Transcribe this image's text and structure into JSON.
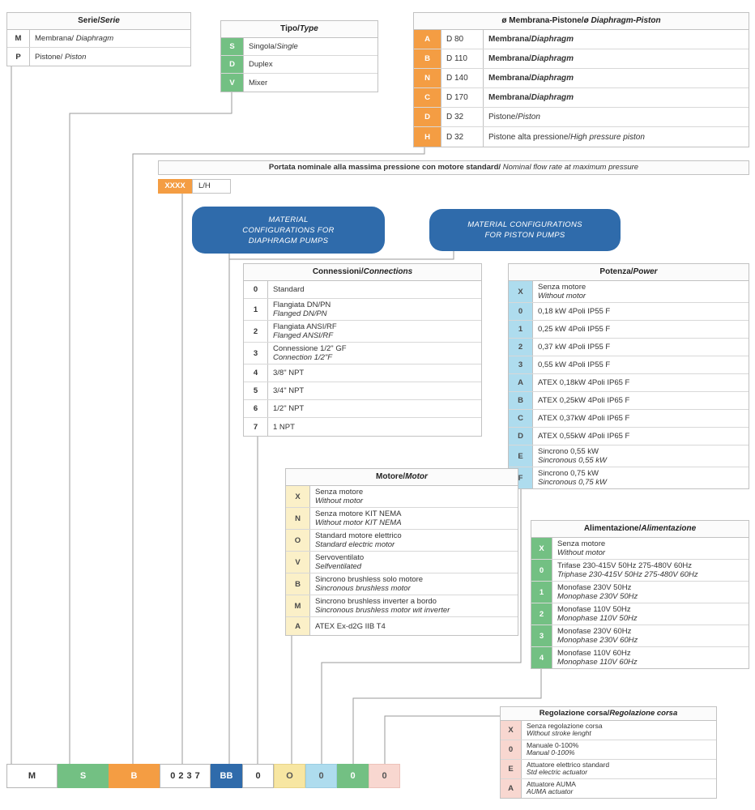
{
  "colors": {
    "orange": "#F49D43",
    "green": "#73C083",
    "light_blue": "#AEDCEE",
    "cream": "#FBF0C8",
    "yellow": "#F7E6A2",
    "pink": "#F8D7D0",
    "blue": "#2F6BAB",
    "border_gray": "#C2C2C2",
    "connector_gray": "#9A9A9A"
  },
  "tables": {
    "serie": {
      "title": {
        "t": "Serie/",
        "i": "Serie"
      },
      "rows": [
        {
          "code": "M",
          "lines": [
            {
              "t": "Membrana/",
              "i": " Diaphragm"
            }
          ]
        },
        {
          "code": "P",
          "lines": [
            {
              "t": "Pistone/",
              "i": " Piston"
            }
          ]
        }
      ]
    },
    "tipo": {
      "title": {
        "t": "Tipo/",
        "i": "Type"
      },
      "rows": [
        {
          "code": "S",
          "lines": [
            {
              "t": "Singola/",
              "i": "Single"
            }
          ]
        },
        {
          "code": "D",
          "lines": [
            {
              "t": "Duplex"
            }
          ]
        },
        {
          "code": "V",
          "lines": [
            {
              "t": "Mixer"
            }
          ]
        }
      ]
    },
    "membrana": {
      "title": {
        "t": "ø Membrana-Pistone/",
        "i": "ø Diaphragm-Piston"
      },
      "rows": [
        {
          "code": "A",
          "dia": "D 80",
          "lines": [
            {
              "t": "Membrana/",
              "i": "Diaphragm",
              "b": true
            }
          ]
        },
        {
          "code": "B",
          "dia": "D 110",
          "lines": [
            {
              "t": "Membrana/",
              "i": "Diaphragm",
              "b": true
            }
          ]
        },
        {
          "code": "N",
          "dia": "D 140",
          "lines": [
            {
              "t": "Membrana/",
              "i": "Diaphragm",
              "b": true
            }
          ]
        },
        {
          "code": "C",
          "dia": "D 170",
          "lines": [
            {
              "t": "Membrana/",
              "i": "Diaphragm",
              "b": true
            }
          ]
        },
        {
          "code": "D",
          "dia": "D 32",
          "lines": [
            {
              "t": "Pistone/",
              "i": "Piston"
            }
          ]
        },
        {
          "code": "H",
          "dia": "D 32",
          "lines": [
            {
              "t": "Pistone alta pressione/",
              "i": "High pressure piston"
            }
          ]
        }
      ]
    },
    "connessioni": {
      "title": {
        "t": "Connessioni/",
        "i": "Connections"
      },
      "rows": [
        {
          "code": "0",
          "lines": [
            {
              "t": "Standard"
            }
          ]
        },
        {
          "code": "1",
          "lines": [
            {
              "t": "Flangiata DN/PN"
            },
            {
              "i": "Flanged DN/PN"
            }
          ]
        },
        {
          "code": "2",
          "lines": [
            {
              "t": "Flangiata ANSI/RF"
            },
            {
              "i": "Flanged ANSI/RF"
            }
          ]
        },
        {
          "code": "3",
          "lines": [
            {
              "t": "Connessione 1/2\" GF"
            },
            {
              "i": "Connection 1/2\"F"
            }
          ]
        },
        {
          "code": "4",
          "lines": [
            {
              "t": "3/8\" NPT"
            }
          ]
        },
        {
          "code": "5",
          "lines": [
            {
              "t": "3/4\" NPT"
            }
          ]
        },
        {
          "code": "6",
          "lines": [
            {
              "t": "1/2\" NPT"
            }
          ]
        },
        {
          "code": "7",
          "lines": [
            {
              "t": "1 NPT"
            }
          ]
        }
      ]
    },
    "potenza": {
      "title": {
        "t": "Potenza/",
        "i": "Power"
      },
      "rows": [
        {
          "code": "X",
          "lines": [
            {
              "t": "Senza motore"
            },
            {
              "i": "Without motor"
            }
          ]
        },
        {
          "code": "0",
          "lines": [
            {
              "t": "0,18 kW 4Poli IP55 F"
            }
          ]
        },
        {
          "code": "1",
          "lines": [
            {
              "t": "0,25 kW 4Poli IP55 F"
            }
          ]
        },
        {
          "code": "2",
          "lines": [
            {
              "t": "0,37 kW 4Poli IP55 F"
            }
          ]
        },
        {
          "code": "3",
          "lines": [
            {
              "t": "0,55 kW 4Poli IP55 F"
            }
          ]
        },
        {
          "code": "A",
          "lines": [
            {
              "t": "ATEX 0,18kW 4Poli IP65 F"
            }
          ]
        },
        {
          "code": "B",
          "lines": [
            {
              "t": "ATEX 0,25kW 4Poli IP65 F"
            }
          ]
        },
        {
          "code": "C",
          "lines": [
            {
              "t": "ATEX 0,37kW 4Poli IP65 F"
            }
          ]
        },
        {
          "code": "D",
          "lines": [
            {
              "t": "ATEX 0,55kW 4Poli IP65 F"
            }
          ]
        },
        {
          "code": "E",
          "lines": [
            {
              "t": "Sincrono 0,55 kW"
            },
            {
              "i": "Sincronous 0,55 kW"
            }
          ]
        },
        {
          "code": "F",
          "lines": [
            {
              "t": "Sincrono 0,75 kW"
            },
            {
              "i": "Sincronous 0,75 kW"
            }
          ]
        }
      ]
    },
    "motore": {
      "title": {
        "t": "Motore/",
        "i": "Motor"
      },
      "rows": [
        {
          "code": "X",
          "lines": [
            {
              "t": "Senza motore"
            },
            {
              "i": "Without motor"
            }
          ]
        },
        {
          "code": "N",
          "lines": [
            {
              "t": "Senza motore KIT NEMA"
            },
            {
              "i": "Without motor KIT NEMA"
            }
          ]
        },
        {
          "code": "O",
          "lines": [
            {
              "t": "Standard motore elettrico"
            },
            {
              "i": "Standard electric motor"
            }
          ]
        },
        {
          "code": "V",
          "lines": [
            {
              "t": "Servoventilato"
            },
            {
              "i": "Selfventilated"
            }
          ]
        },
        {
          "code": "B",
          "lines": [
            {
              "t": "Sincrono brushless solo motore"
            },
            {
              "i": "Sincronous brushless motor"
            }
          ]
        },
        {
          "code": "M",
          "lines": [
            {
              "t": "Sincrono brushless inverter a bordo"
            },
            {
              "i": "Sincronous brushless motor wit inverter"
            }
          ]
        },
        {
          "code": "A",
          "lines": [
            {
              "t": "ATEX Ex-d2G IIB T4"
            }
          ]
        }
      ]
    },
    "alimentazione": {
      "title": {
        "t": "Alimentazione/",
        "i": "Alimentazione"
      },
      "rows": [
        {
          "code": "X",
          "lines": [
            {
              "t": "Senza motore"
            },
            {
              "i": "Without motor"
            }
          ]
        },
        {
          "code": "0",
          "lines": [
            {
              "t": "Trifase 230-415V 50Hz 275-480V 60Hz"
            },
            {
              "i": "Triphase 230-415V 50Hz 275-480V 60Hz"
            }
          ]
        },
        {
          "code": "1",
          "lines": [
            {
              "t": "Monofase 230V 50Hz"
            },
            {
              "i": "Monophase 230V 50Hz"
            }
          ]
        },
        {
          "code": "2",
          "lines": [
            {
              "t": "Monofase 110V 50Hz"
            },
            {
              "i": "Monophase 110V 50Hz"
            }
          ]
        },
        {
          "code": "3",
          "lines": [
            {
              "t": "Monofase 230V 60Hz"
            },
            {
              "i": "Monophase 230V 60Hz"
            }
          ]
        },
        {
          "code": "4",
          "lines": [
            {
              "t": "Monofase 110V 60Hz"
            },
            {
              "i": "Monophase 110V 60Hz"
            }
          ]
        }
      ]
    },
    "regolazione": {
      "title": {
        "t": "Regolazione corsa/",
        "i": "Regolazione corsa"
      },
      "rows": [
        {
          "code": "X",
          "lines": [
            {
              "t": "Senza regolazione corsa"
            },
            {
              "i": "Without stroke lenght"
            }
          ]
        },
        {
          "code": "0",
          "lines": [
            {
              "t": "Manuale 0-100%"
            },
            {
              "i": "Manual 0-100%"
            }
          ]
        },
        {
          "code": "E",
          "lines": [
            {
              "t": "Attuatore elettrico standard"
            },
            {
              "i": "Std electric actuator"
            }
          ]
        },
        {
          "code": "A",
          "lines": [
            {
              "t": "Attuatore AUMA"
            },
            {
              "i": "AUMA actuator"
            }
          ]
        }
      ]
    }
  },
  "portata": {
    "title": {
      "t": "Portata nominale alla massima pressione con motore standard/",
      "i": " Nominal flow rate at maximum pressure"
    },
    "code": "XXXX",
    "unit": "L/H"
  },
  "badges": {
    "diaphragm": {
      "lines": [
        "MATERIAL",
        "CONFIGURATIONS FOR",
        "DIAPHRAGM PUMPS"
      ]
    },
    "piston": {
      "lines": [
        "MATERIAL CONFIGURATIONS",
        "FOR PISTON PUMPS"
      ]
    }
  },
  "example_code": {
    "boxes": [
      {
        "value": "M",
        "style": "plain"
      },
      {
        "value": "S",
        "style": "green"
      },
      {
        "value": "B",
        "style": "orange"
      },
      {
        "value": "0237",
        "style": "plain spaced"
      },
      {
        "value": "BB",
        "style": "blue"
      },
      {
        "value": "0",
        "style": "plain"
      },
      {
        "value": "O",
        "style": "yellow"
      },
      {
        "value": "0",
        "style": "lightblue"
      },
      {
        "value": "0",
        "style": "green"
      },
      {
        "value": "0",
        "style": "pink"
      }
    ]
  }
}
